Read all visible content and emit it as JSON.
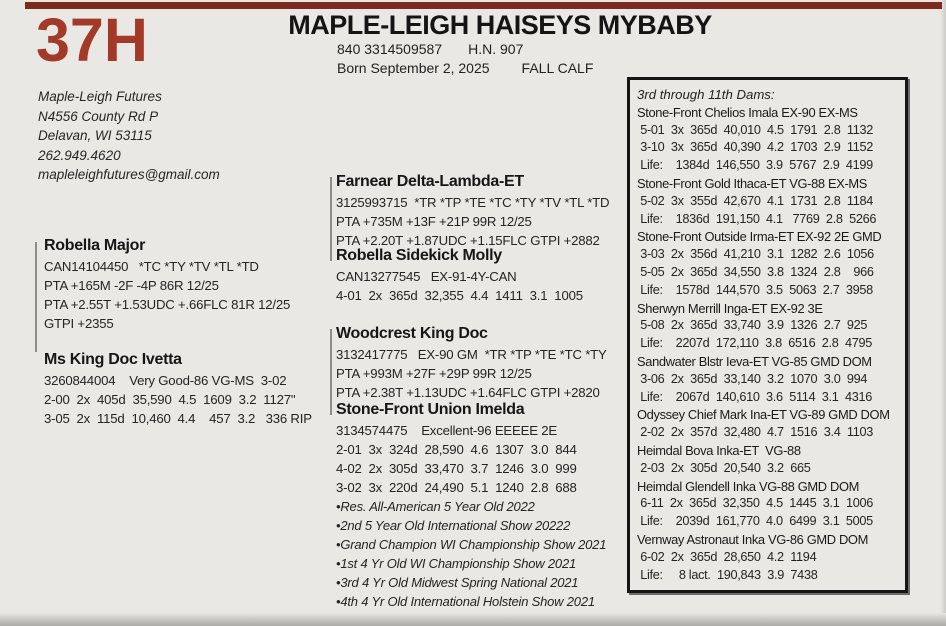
{
  "header": {
    "lot": "37H",
    "title": "MAPLE-LEIGH HAISEYS MYBABY",
    "reg_number": "840 3314509587",
    "herd_number": "H.N. 907",
    "born": "Born September 2, 2025",
    "season": "FALL CALF"
  },
  "contact": {
    "lines": [
      "Maple-Leigh Futures",
      "N4556 County Rd P",
      "Delavan, WI   53115",
      "262.949.4620",
      "mapleleighfutures@gmail.com"
    ]
  },
  "pedigree": {
    "blocks": [
      {
        "id": "robella-major",
        "name": "Robella Major",
        "lines": [
          "CAN14104450   *TC *TY *TV *TL *TD",
          "PTA +165M -2F -4P 86R 12/25",
          "PTA +2.55T +1.53UDC +.66FLC 81R 12/25",
          "GTPI +2355"
        ]
      },
      {
        "id": "ms-king-doc-ivetta",
        "name": "Ms King Doc Ivetta",
        "lines": [
          "3260844004    Very Good-86 VG-MS  3-02",
          "2-00  2x  405d  35,590  4.5  1609  3.2  1127\"",
          "3-05  2x  115d  10,460  4.4    457  3.2   336 RIP"
        ]
      },
      {
        "id": "farnear-delta-lambda",
        "name": "Farnear Delta-Lambda-ET",
        "lines": [
          "3125993715  *TR *TP *TE *TC *TY *TV *TL *TD",
          "PTA +735M +13F +21P 99R 12/25",
          "PTA +2.20T +1.87UDC +1.15FLC GTPI +2882"
        ]
      },
      {
        "id": "robella-sidekick-molly",
        "name": "Robella Sidekick Molly",
        "lines": [
          "CAN13277545   EX-91-4Y-CAN",
          "4-01  2x  365d  32,355  4.4  1411  3.1  1005"
        ]
      },
      {
        "id": "woodcrest-king-doc",
        "name": "Woodcrest King Doc",
        "lines": [
          "3132417775   EX-90 GM  *TR *TP *TE *TC *TY",
          "PTA +993M +27F +29P 99R 12/25",
          "PTA +2.38T +1.13UDC +1.64FLC GTPI +2820"
        ]
      },
      {
        "id": "stone-front-union-imelda",
        "name": "Stone-Front Union Imelda",
        "lines": [
          "3134574475    Excellent-96 EEEEE 2E",
          "2-01  3x  324d  28,590  4.6  1307  3.0  844",
          "4-02  2x  305d  33,470  3.7  1246  3.0  999",
          "3-02  3x  220d  24,490  5.1  1240  2.8  688"
        ],
        "bullets": [
          "Res. All-American 5 Year Old 2022",
          "2nd 5 Year Old International Show 20222",
          "Grand Champion WI Championship Show 2021",
          "1st 4 Yr Old WI Championship Show 2021",
          "3rd 4 Yr Old Midwest Spring National 2021",
          "4th 4 Yr Old International Holstein Show 2021"
        ]
      }
    ]
  },
  "dams_box": {
    "heading": "3rd through 11th Dams:",
    "entries": [
      {
        "name": "Stone-Front Chelios Imala EX-90 EX-MS",
        "records": [
          " 5-01  3x  365d  40,010  4.5  1791  2.8  1132",
          " 3-10  3x  365d  40,390  4.2  1703  2.9  1152",
          " Life:    1384d  146,550  3.9  5767  2.9  4199"
        ]
      },
      {
        "name": "Stone-Front Gold Ithaca-ET VG-88 EX-MS",
        "records": [
          " 5-02  3x  355d  42,670  4.1  1731  2.8  1184",
          " Life:    1836d  191,150  4.1   7769  2.8  5266"
        ]
      },
      {
        "name": "Stone-Front Outside Irma-ET EX-92 2E GMD",
        "records": [
          " 3-03  2x  356d  41,210  3.1  1282  2.6  1056",
          " 5-05  2x  365d  34,550  3.8  1324  2.8    966",
          " Life:    1578d  144,570  3.5  5063  2.7  3958"
        ]
      },
      {
        "name": "Sherwyn Merrill Inga-ET EX-92 3E",
        "records": [
          " 5-08  2x  365d  33,740  3.9  1326  2.7  925",
          " Life:    2207d  172,110  3.8  6516  2.8  4795"
        ]
      },
      {
        "name": "Sandwater Blstr Ieva-ET VG-85 GMD DOM",
        "records": [
          " 3-06  2x  365d  33,140  3.2  1070  3.0  994",
          " Life:    2067d  140,610  3.6  5114  3.1  4316"
        ]
      },
      {
        "name": "Odyssey Chief Mark Ina-ET VG-89 GMD DOM",
        "records": [
          " 2-02  2x  357d  32,480  4.7  1516  3.4  1103"
        ]
      },
      {
        "name": "Heimdal Bova Inka-ET  VG-88",
        "records": [
          " 2-03  2x  305d  20,540  3.2  665"
        ]
      },
      {
        "name": "Heimdal Glendell Inka VG-88 GMD DOM",
        "records": [
          " 6-11  2x  365d  32,350  4.5  1445  3.1  1006",
          " Life:    2039d  161,770  4.0  6499  3.1  5005"
        ]
      },
      {
        "name": "Vernway Astronaut Inka VG-86 GMD DOM",
        "records": [
          " 6-02  2x  365d  28,650  4.2  1194",
          " Life:     8 lact.  190,843  3.9  7438"
        ]
      }
    ]
  }
}
